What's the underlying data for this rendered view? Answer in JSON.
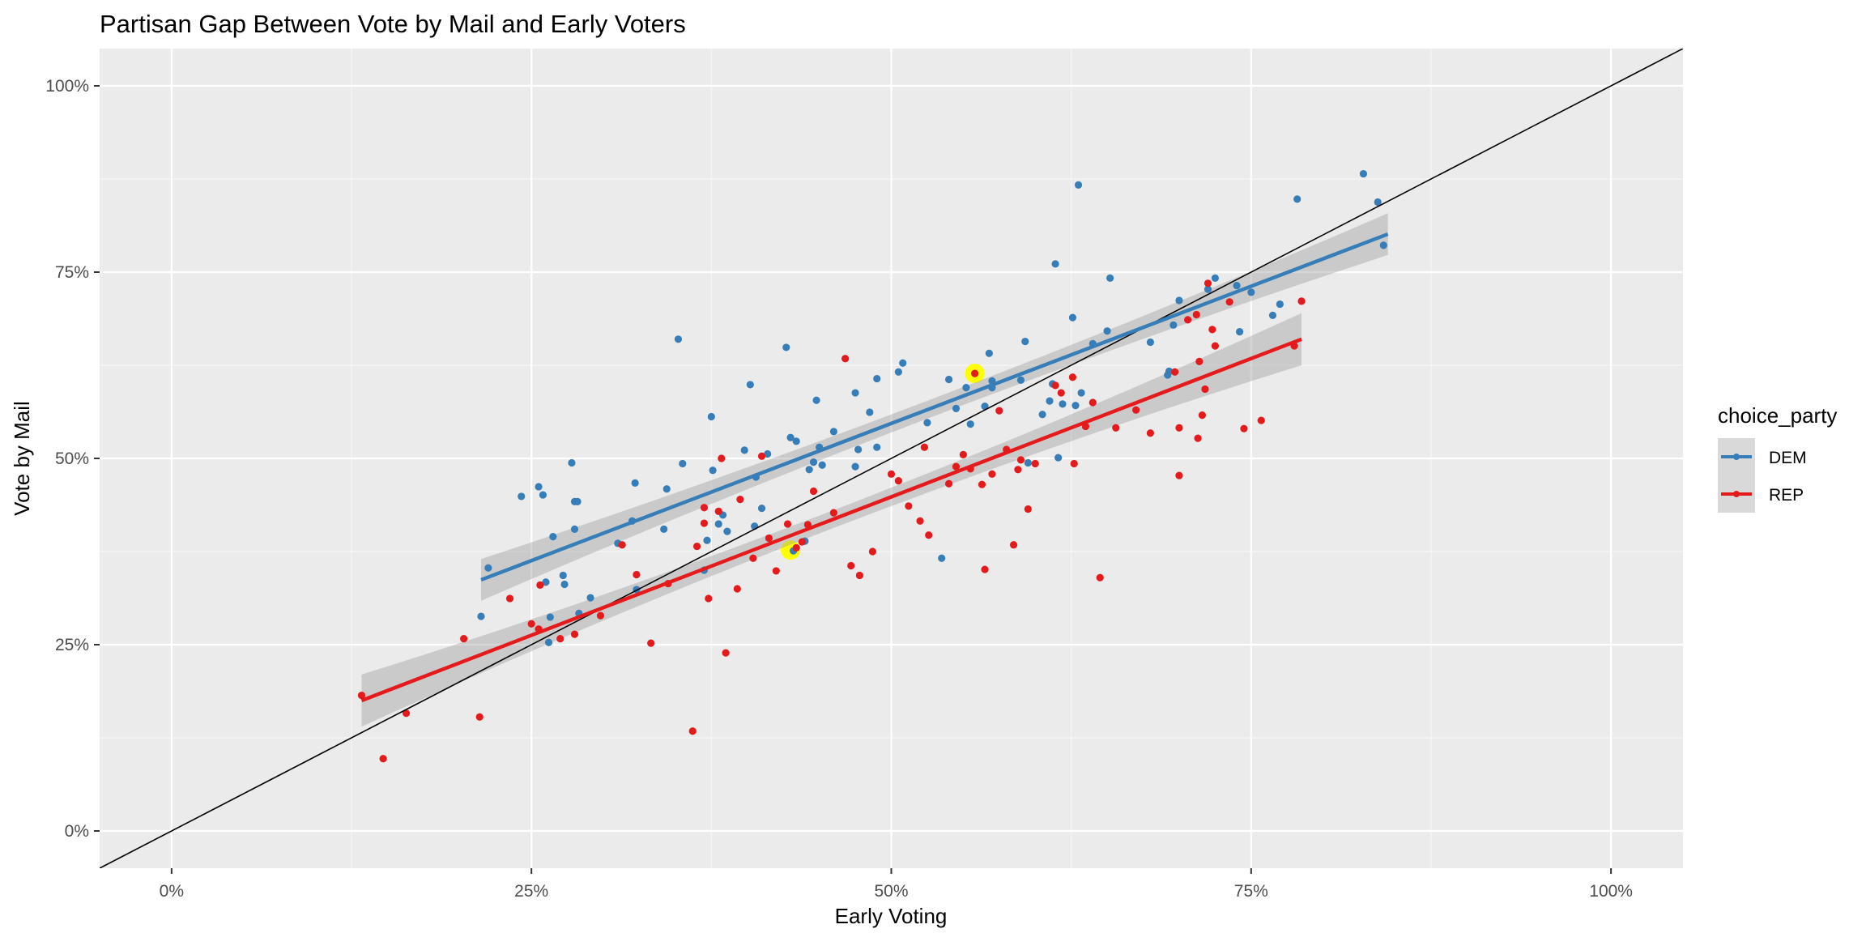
{
  "chart_data": {
    "type": "scatter",
    "title": "Partisan Gap Between Vote by Mail and Early Voters",
    "xlabel": "Early Voting",
    "ylabel": "Vote by Mail",
    "xlim": [
      -0.05,
      1.05
    ],
    "ylim": [
      -0.05,
      1.05
    ],
    "x_ticks": [
      0,
      0.25,
      0.5,
      0.75,
      1.0
    ],
    "x_tick_labels": [
      "0%",
      "25%",
      "50%",
      "75%",
      "100%"
    ],
    "y_ticks": [
      0,
      0.25,
      0.5,
      0.75,
      1.0
    ],
    "y_tick_labels": [
      "0%",
      "25%",
      "50%",
      "75%",
      "100%"
    ],
    "background": "#ebebeb",
    "grid": true,
    "legend": {
      "title": "choice_party",
      "position": "right",
      "entries": [
        "DEM",
        "REP"
      ]
    },
    "reference_line": {
      "type": "identity",
      "slope": 1,
      "intercept": 0,
      "color": "#000000"
    },
    "highlighted_points": [
      {
        "x": 0.558,
        "y": 0.614,
        "color": "#ffff00"
      },
      {
        "x": 0.43,
        "y": 0.377,
        "color": "#ffff00"
      }
    ],
    "series": [
      {
        "name": "DEM",
        "color": "#377eb8",
        "fit": {
          "x_range": [
            0.215,
            0.845
          ],
          "y_at_start": 0.337,
          "y_at_end": 0.801,
          "ci_halfwidth_ends": 0.028,
          "ci_halfwidth_mid": 0.012
        },
        "points": [
          [
            0.215,
            0.288
          ],
          [
            0.22,
            0.353
          ],
          [
            0.243,
            0.449
          ],
          [
            0.255,
            0.462
          ],
          [
            0.258,
            0.451
          ],
          [
            0.26,
            0.334
          ],
          [
            0.262,
            0.253
          ],
          [
            0.263,
            0.287
          ],
          [
            0.265,
            0.395
          ],
          [
            0.272,
            0.343
          ],
          [
            0.273,
            0.331
          ],
          [
            0.278,
            0.494
          ],
          [
            0.28,
            0.442
          ],
          [
            0.28,
            0.405
          ],
          [
            0.282,
            0.442
          ],
          [
            0.283,
            0.292
          ],
          [
            0.291,
            0.313
          ],
          [
            0.31,
            0.386
          ],
          [
            0.32,
            0.416
          ],
          [
            0.322,
            0.467
          ],
          [
            0.323,
            0.324
          ],
          [
            0.342,
            0.405
          ],
          [
            0.344,
            0.459
          ],
          [
            0.352,
            0.66
          ],
          [
            0.355,
            0.493
          ],
          [
            0.37,
            0.35
          ],
          [
            0.372,
            0.39
          ],
          [
            0.375,
            0.556
          ],
          [
            0.376,
            0.484
          ],
          [
            0.38,
            0.412
          ],
          [
            0.383,
            0.424
          ],
          [
            0.386,
            0.402
          ],
          [
            0.398,
            0.511
          ],
          [
            0.402,
            0.599
          ],
          [
            0.405,
            0.409
          ],
          [
            0.406,
            0.475
          ],
          [
            0.41,
            0.433
          ],
          [
            0.414,
            0.506
          ],
          [
            0.427,
            0.649
          ],
          [
            0.43,
            0.528
          ],
          [
            0.432,
            0.376
          ],
          [
            0.434,
            0.523
          ],
          [
            0.44,
            0.389
          ],
          [
            0.443,
            0.485
          ],
          [
            0.446,
            0.495
          ],
          [
            0.448,
            0.578
          ],
          [
            0.45,
            0.515
          ],
          [
            0.452,
            0.491
          ],
          [
            0.46,
            0.536
          ],
          [
            0.475,
            0.489
          ],
          [
            0.475,
            0.588
          ],
          [
            0.477,
            0.512
          ],
          [
            0.485,
            0.562
          ],
          [
            0.49,
            0.515
          ],
          [
            0.49,
            0.607
          ],
          [
            0.505,
            0.616
          ],
          [
            0.508,
            0.628
          ],
          [
            0.525,
            0.548
          ],
          [
            0.535,
            0.366
          ],
          [
            0.54,
            0.606
          ],
          [
            0.545,
            0.567
          ],
          [
            0.552,
            0.595
          ],
          [
            0.555,
            0.546
          ],
          [
            0.565,
            0.57
          ],
          [
            0.568,
            0.641
          ],
          [
            0.57,
            0.595
          ],
          [
            0.57,
            0.604
          ],
          [
            0.59,
            0.605
          ],
          [
            0.593,
            0.657
          ],
          [
            0.595,
            0.494
          ],
          [
            0.605,
            0.559
          ],
          [
            0.61,
            0.577
          ],
          [
            0.612,
            0.6
          ],
          [
            0.614,
            0.761
          ],
          [
            0.616,
            0.501
          ],
          [
            0.619,
            0.573
          ],
          [
            0.626,
            0.689
          ],
          [
            0.628,
            0.571
          ],
          [
            0.63,
            0.867
          ],
          [
            0.632,
            0.588
          ],
          [
            0.64,
            0.654
          ],
          [
            0.65,
            0.671
          ],
          [
            0.652,
            0.742
          ],
          [
            0.68,
            0.656
          ],
          [
            0.692,
            0.612
          ],
          [
            0.693,
            0.617
          ],
          [
            0.696,
            0.679
          ],
          [
            0.7,
            0.712
          ],
          [
            0.72,
            0.727
          ],
          [
            0.725,
            0.742
          ],
          [
            0.74,
            0.732
          ],
          [
            0.742,
            0.67
          ],
          [
            0.75,
            0.723
          ],
          [
            0.765,
            0.692
          ],
          [
            0.77,
            0.707
          ],
          [
            0.782,
            0.848
          ],
          [
            0.828,
            0.882
          ],
          [
            0.838,
            0.844
          ],
          [
            0.842,
            0.786
          ]
        ]
      },
      {
        "name": "REP",
        "color": "#e41a1c",
        "fit": {
          "x_range": [
            0.132,
            0.785
          ],
          "y_at_start": 0.175,
          "y_at_end": 0.66,
          "ci_halfwidth_ends": 0.035,
          "ci_halfwidth_mid": 0.012
        },
        "points": [
          [
            0.132,
            0.182
          ],
          [
            0.147,
            0.097
          ],
          [
            0.163,
            0.158
          ],
          [
            0.203,
            0.258
          ],
          [
            0.214,
            0.153
          ],
          [
            0.235,
            0.312
          ],
          [
            0.25,
            0.278
          ],
          [
            0.255,
            0.271
          ],
          [
            0.256,
            0.33
          ],
          [
            0.27,
            0.258
          ],
          [
            0.28,
            0.264
          ],
          [
            0.298,
            0.289
          ],
          [
            0.313,
            0.384
          ],
          [
            0.323,
            0.344
          ],
          [
            0.333,
            0.252
          ],
          [
            0.345,
            0.332
          ],
          [
            0.362,
            0.134
          ],
          [
            0.365,
            0.382
          ],
          [
            0.37,
            0.434
          ],
          [
            0.37,
            0.413
          ],
          [
            0.373,
            0.312
          ],
          [
            0.38,
            0.429
          ],
          [
            0.382,
            0.5
          ],
          [
            0.385,
            0.239
          ],
          [
            0.393,
            0.325
          ],
          [
            0.395,
            0.445
          ],
          [
            0.404,
            0.366
          ],
          [
            0.41,
            0.503
          ],
          [
            0.415,
            0.393
          ],
          [
            0.42,
            0.349
          ],
          [
            0.428,
            0.412
          ],
          [
            0.434,
            0.38
          ],
          [
            0.438,
            0.388
          ],
          [
            0.442,
            0.411
          ],
          [
            0.446,
            0.456
          ],
          [
            0.46,
            0.427
          ],
          [
            0.468,
            0.634
          ],
          [
            0.472,
            0.356
          ],
          [
            0.478,
            0.343
          ],
          [
            0.487,
            0.375
          ],
          [
            0.5,
            0.479
          ],
          [
            0.505,
            0.47
          ],
          [
            0.512,
            0.436
          ],
          [
            0.52,
            0.416
          ],
          [
            0.523,
            0.515
          ],
          [
            0.526,
            0.397
          ],
          [
            0.54,
            0.466
          ],
          [
            0.545,
            0.489
          ],
          [
            0.55,
            0.505
          ],
          [
            0.555,
            0.486
          ],
          [
            0.558,
            0.614
          ],
          [
            0.563,
            0.465
          ],
          [
            0.565,
            0.351
          ],
          [
            0.57,
            0.479
          ],
          [
            0.575,
            0.564
          ],
          [
            0.58,
            0.512
          ],
          [
            0.585,
            0.384
          ],
          [
            0.588,
            0.485
          ],
          [
            0.59,
            0.498
          ],
          [
            0.595,
            0.432
          ],
          [
            0.6,
            0.493
          ],
          [
            0.614,
            0.598
          ],
          [
            0.618,
            0.588
          ],
          [
            0.626,
            0.609
          ],
          [
            0.627,
            0.493
          ],
          [
            0.635,
            0.543
          ],
          [
            0.64,
            0.575
          ],
          [
            0.645,
            0.34
          ],
          [
            0.656,
            0.541
          ],
          [
            0.67,
            0.565
          ],
          [
            0.68,
            0.534
          ],
          [
            0.697,
            0.616
          ],
          [
            0.7,
            0.541
          ],
          [
            0.7,
            0.477
          ],
          [
            0.706,
            0.686
          ],
          [
            0.712,
            0.693
          ],
          [
            0.713,
            0.527
          ],
          [
            0.714,
            0.63
          ],
          [
            0.716,
            0.558
          ],
          [
            0.718,
            0.593
          ],
          [
            0.723,
            0.673
          ],
          [
            0.725,
            0.651
          ],
          [
            0.72,
            0.735
          ],
          [
            0.735,
            0.71
          ],
          [
            0.745,
            0.54
          ],
          [
            0.757,
            0.551
          ],
          [
            0.78,
            0.651
          ],
          [
            0.785,
            0.711
          ]
        ]
      }
    ]
  }
}
